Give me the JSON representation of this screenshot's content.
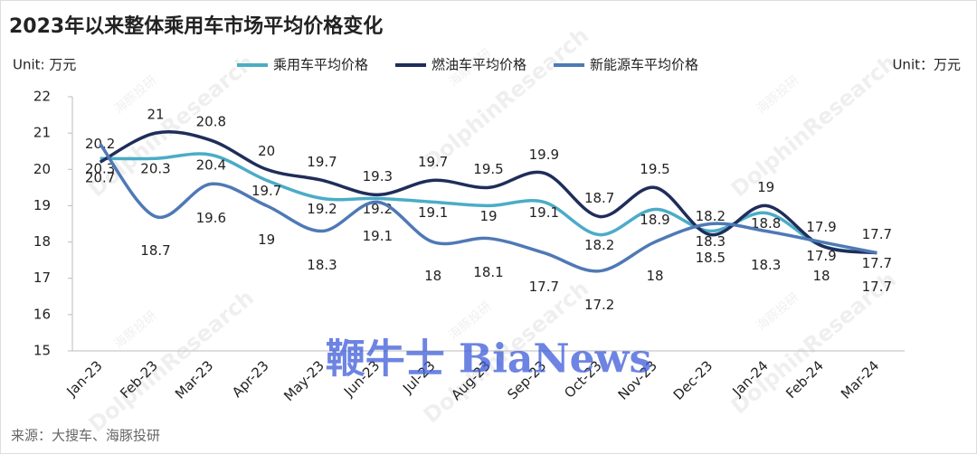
{
  "chart_data": {
    "type": "line",
    "title": "2023年以来整体乘用车市场平均价格变化",
    "unit_left": "Unit: 万元",
    "unit_right": "Unit：万元",
    "source": "来源：大搜车、海豚投研",
    "watermarks": [
      "DolphinResearch",
      "海豚投研",
      "鞭牛士 BiaNews"
    ],
    "categories": [
      "Jan-23",
      "Feb-23",
      "Mar-23",
      "Apr-23",
      "May-23",
      "Jun-23",
      "Jul-23",
      "Aug-23",
      "Sep-23",
      "Oct-23",
      "Nov-23",
      "Dec-23",
      "Jan-24",
      "Feb-24",
      "Mar-24"
    ],
    "series": [
      {
        "name": "乘用车平均价格",
        "color": "#4bacc6",
        "values": [
          20.3,
          20.3,
          20.4,
          19.7,
          19.2,
          19.2,
          19.1,
          19,
          19.1,
          18.2,
          18.9,
          18.3,
          18.8,
          17.9,
          17.7
        ]
      },
      {
        "name": "燃油车平均价格",
        "color": "#1f2d5a",
        "values": [
          20.2,
          21,
          20.8,
          20,
          19.7,
          19.3,
          19.7,
          19.5,
          19.9,
          18.7,
          19.5,
          18.2,
          19,
          17.9,
          17.7
        ]
      },
      {
        "name": "新能源车平均价格",
        "color": "#4f79b5",
        "values": [
          20.7,
          18.7,
          19.6,
          19,
          18.3,
          19.1,
          18,
          18.1,
          17.7,
          17.2,
          18,
          18.5,
          18.3,
          18,
          17.7
        ]
      }
    ],
    "ylim": [
      15,
      22
    ],
    "yticks": [
      15,
      16,
      17,
      18,
      19,
      20,
      21,
      22
    ]
  }
}
